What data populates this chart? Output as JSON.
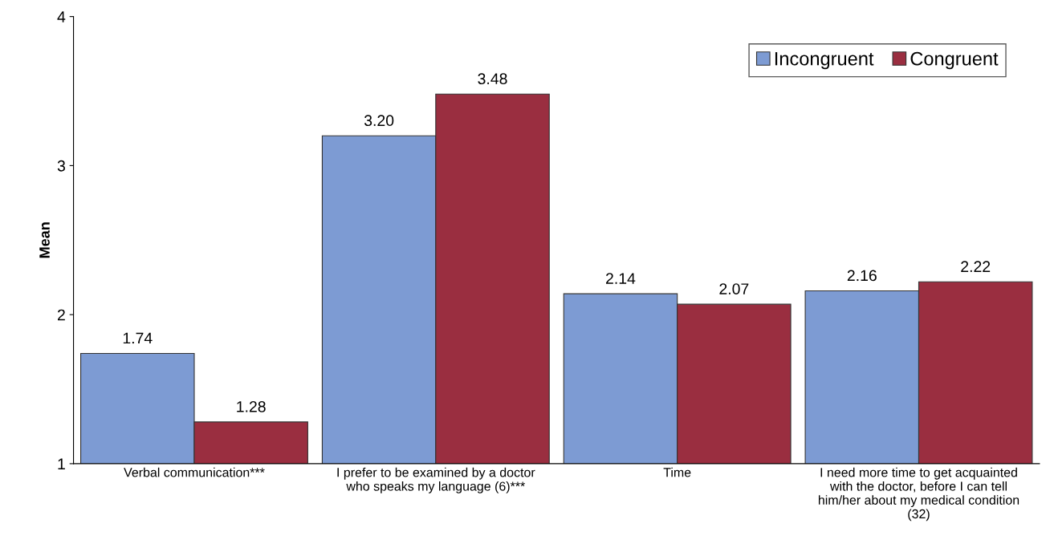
{
  "chart_data": {
    "type": "bar",
    "ylabel": "Mean",
    "categories": [
      "Verbal communication***",
      "I prefer to be examined by a doctor\nwho speaks my language (6)***",
      "Time",
      "I need more time to get acquainted\nwith the doctor, before I can tell\nhim/her about my medical condition\n(32)"
    ],
    "series": [
      {
        "name": "Incongruent",
        "color": "#7d9bd3",
        "values": [
          1.74,
          3.2,
          2.14,
          2.16
        ],
        "value_labels": [
          "1.74",
          "3.20",
          "2.14",
          "2.16"
        ]
      },
      {
        "name": "Congruent",
        "color": "#9a2e40",
        "values": [
          1.28,
          3.48,
          2.07,
          2.22
        ],
        "value_labels": [
          "1.28",
          "3.48",
          "2.07",
          "2.22"
        ]
      }
    ],
    "ylim": [
      1,
      4
    ],
    "yticks": [
      1,
      2,
      3,
      4
    ],
    "grid": false,
    "legend": "top right"
  }
}
